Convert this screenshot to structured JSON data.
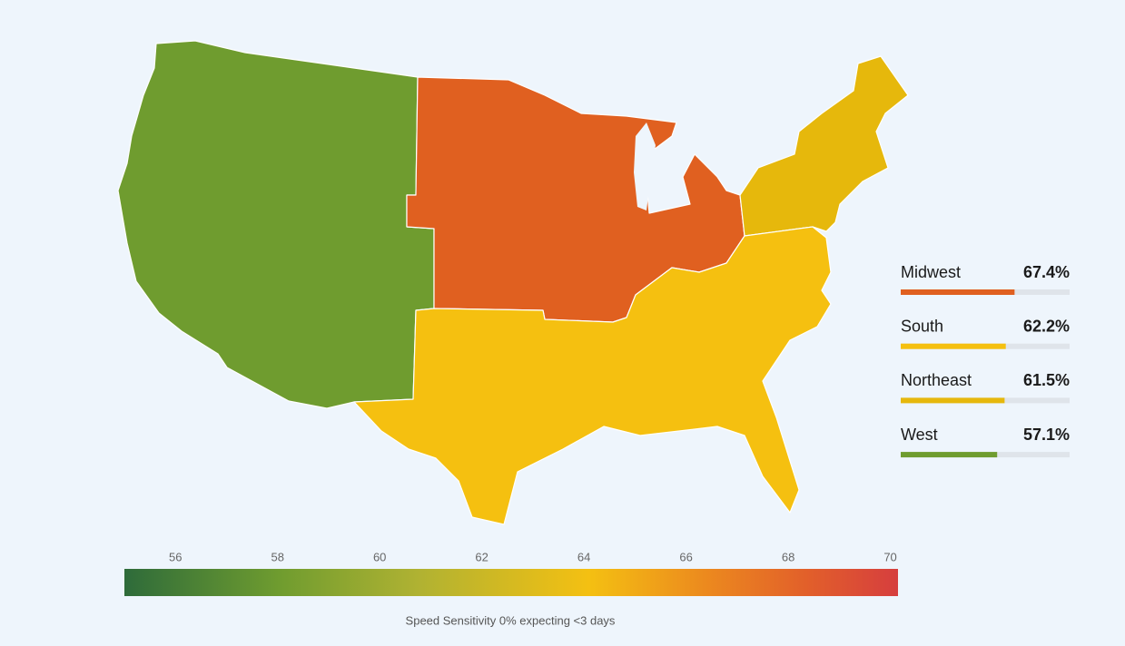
{
  "chart_data": {
    "type": "choropleth",
    "series": [
      {
        "name": "Midwest",
        "value": 67.4,
        "value_label": "67.4%",
        "color": "#e06020"
      },
      {
        "name": "South",
        "value": 62.2,
        "value_label": "62.2%",
        "color": "#f5c010"
      },
      {
        "name": "Northeast",
        "value": 61.5,
        "value_label": "61.5%",
        "color": "#e6b80c"
      },
      {
        "name": "West",
        "value": 57.1,
        "value_label": "57.1%",
        "color": "#6f9c2f"
      }
    ],
    "xlim": [
      0,
      100
    ],
    "colorbar": {
      "title": "Speed Sensitivity 0% expecting <3 days",
      "lim": [
        55,
        70.15
      ],
      "ticks": [
        56,
        58,
        60,
        62,
        64,
        66,
        68,
        70
      ]
    }
  }
}
